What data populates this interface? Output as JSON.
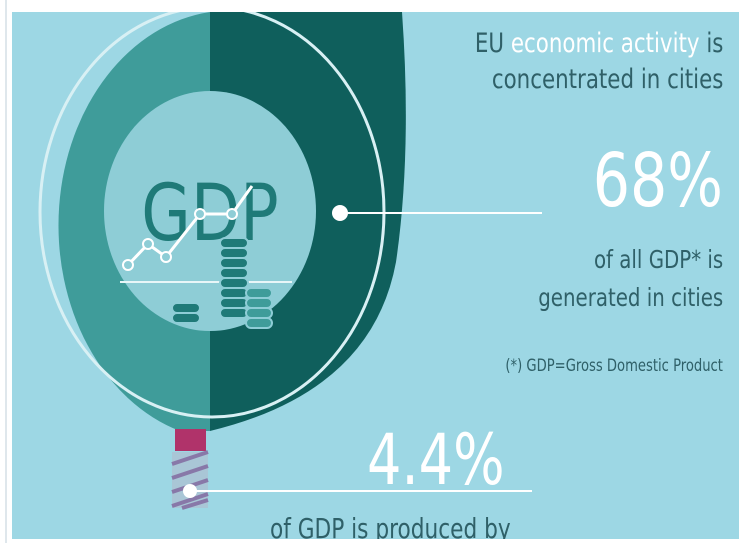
{
  "headline": {
    "prefix": "EU",
    "highlight": "economic activity",
    "suffix": "is",
    "line2": "concentrated in cities"
  },
  "stat_main": {
    "value": "68%",
    "line1": "of all GDP* is",
    "line2": "generated in cities"
  },
  "footnote": "(*) GDP=Gross Domestic Product",
  "stat_secondary": {
    "value": "4.4%",
    "line1": "of GDP is produced by"
  },
  "center_label": "GDP",
  "colors": {
    "background": "#9dd7e4",
    "dark_teal": "#0f5f5c",
    "mid_teal": "#3f9c9a",
    "inner_circle": "#8ecdd6",
    "accent_magenta": "#b0336a",
    "text": "#2f6068",
    "white": "#ffffff"
  },
  "icons": [
    "gdp-line-chart-icon",
    "coin-stack-icon"
  ]
}
